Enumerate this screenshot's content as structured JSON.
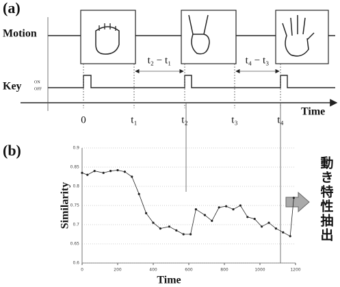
{
  "panel_a": {
    "label": "(a)",
    "motion_label": "Motion",
    "key_label": "Key",
    "key_on": "ON",
    "key_off": "OFF",
    "time_label": "Time",
    "time_marks": [
      "0",
      "t₁",
      "t₂",
      "t₃",
      "t₄"
    ],
    "intervals": [
      "t₂ − t₁",
      "t₄ − t₃"
    ]
  },
  "panel_b": {
    "label": "(b)",
    "side_label": "動き特性抽出"
  },
  "chart_data": {
    "type": "line",
    "x_label": "Time",
    "y_label": "Similarity",
    "color": "#222",
    "x": [
      0,
      30,
      70,
      120,
      160,
      200,
      240,
      280,
      320,
      360,
      400,
      440,
      490,
      530,
      570,
      610,
      640,
      690,
      730,
      770,
      810,
      850,
      890,
      930,
      970,
      1010,
      1050,
      1090,
      1130,
      1170,
      1190
    ],
    "series": [
      {
        "name": "Similarity",
        "color": "#222",
        "values": [
          0.835,
          0.83,
          0.84,
          0.835,
          0.84,
          0.842,
          0.838,
          0.825,
          0.78,
          0.73,
          0.705,
          0.69,
          0.695,
          0.685,
          0.675,
          0.675,
          0.74,
          0.725,
          0.71,
          0.745,
          0.748,
          0.74,
          0.75,
          0.72,
          0.715,
          0.695,
          0.705,
          0.69,
          0.68,
          0.67,
          0.77
        ]
      }
    ],
    "xlim": [
      0,
      1200
    ],
    "xticks": [
      0,
      200,
      400,
      600,
      800,
      1000,
      1200
    ],
    "ylim": [
      0.6,
      0.9
    ],
    "yticks": [
      0.6,
      0.65,
      0.7,
      0.75,
      0.8,
      0.85,
      0.9
    ],
    "grid": true
  }
}
